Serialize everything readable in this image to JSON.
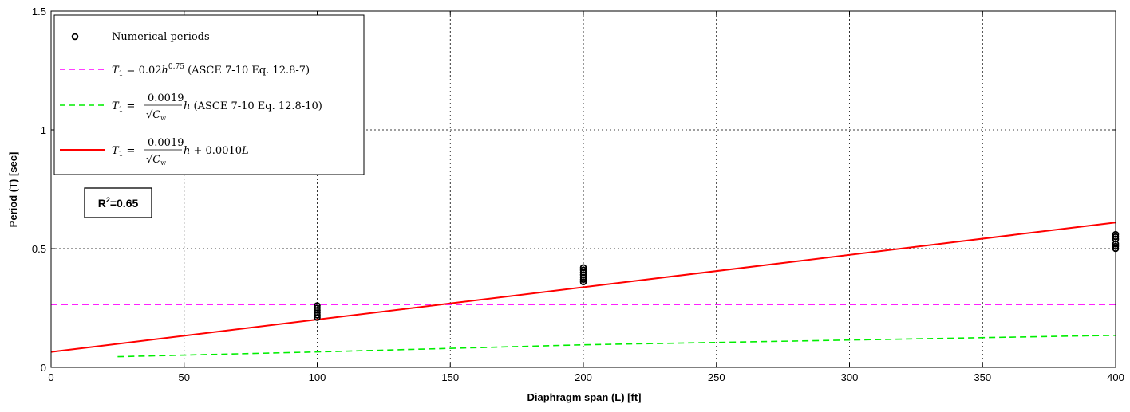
{
  "chart_data": {
    "type": "line",
    "xlabel": "Diaphragm span (L) [ft]",
    "ylabel": "Period (T) [sec]",
    "xlim": [
      0,
      400
    ],
    "ylim": [
      0,
      1.5
    ],
    "xticks": [
      0,
      50,
      100,
      150,
      200,
      250,
      300,
      350,
      400
    ],
    "yticks": [
      0,
      0.5,
      1,
      1.5
    ],
    "xtick_labels": [
      "0",
      "50",
      "100",
      "150",
      "200",
      "250",
      "300",
      "350",
      "400"
    ],
    "ytick_labels": [
      "0",
      "0.5",
      "1",
      "1.5"
    ],
    "grid": true,
    "legend_position": "top-left",
    "annotation": {
      "prefix": "R",
      "sup": "2",
      "suffix": "=0.65"
    },
    "series": [
      {
        "name": "Numerical periods",
        "kind": "scatter",
        "marker": "circle-open",
        "color": "#000000",
        "points": [
          {
            "x": 100,
            "y": 0.26
          },
          {
            "x": 100,
            "y": 0.25
          },
          {
            "x": 100,
            "y": 0.24
          },
          {
            "x": 100,
            "y": 0.23
          },
          {
            "x": 100,
            "y": 0.22
          },
          {
            "x": 100,
            "y": 0.21
          },
          {
            "x": 200,
            "y": 0.42
          },
          {
            "x": 200,
            "y": 0.41
          },
          {
            "x": 200,
            "y": 0.4
          },
          {
            "x": 200,
            "y": 0.39
          },
          {
            "x": 200,
            "y": 0.38
          },
          {
            "x": 200,
            "y": 0.37
          },
          {
            "x": 200,
            "y": 0.36
          },
          {
            "x": 400,
            "y": 0.56
          },
          {
            "x": 400,
            "y": 0.55
          },
          {
            "x": 400,
            "y": 0.54
          },
          {
            "x": 400,
            "y": 0.52
          },
          {
            "x": 400,
            "y": 0.51
          },
          {
            "x": 400,
            "y": 0.5
          }
        ]
      },
      {
        "name": "T1 = 0.02h^0.75 (ASCE 7-10 Eq. 12.8-7)",
        "kind": "line",
        "dash": "dashed",
        "color": "#ff00ff",
        "points": [
          {
            "x": 0,
            "y": 0.265
          },
          {
            "x": 400,
            "y": 0.265
          }
        ]
      },
      {
        "name": "T1 = (0.0019/√Cw)h (ASCE 7-10 Eq. 12.8-10)",
        "kind": "line",
        "dash": "dashed",
        "color": "#00ee00",
        "points": [
          {
            "x": 25,
            "y": 0.045
          },
          {
            "x": 100,
            "y": 0.065
          },
          {
            "x": 200,
            "y": 0.095
          },
          {
            "x": 300,
            "y": 0.115
          },
          {
            "x": 400,
            "y": 0.135
          }
        ]
      },
      {
        "name": "T1 = (0.0019/√Cw)h + 0.0010L",
        "kind": "line",
        "dash": "solid",
        "color": "#ff0000",
        "points": [
          {
            "x": 0,
            "y": 0.065
          },
          {
            "x": 400,
            "y": 0.61
          }
        ]
      }
    ]
  }
}
